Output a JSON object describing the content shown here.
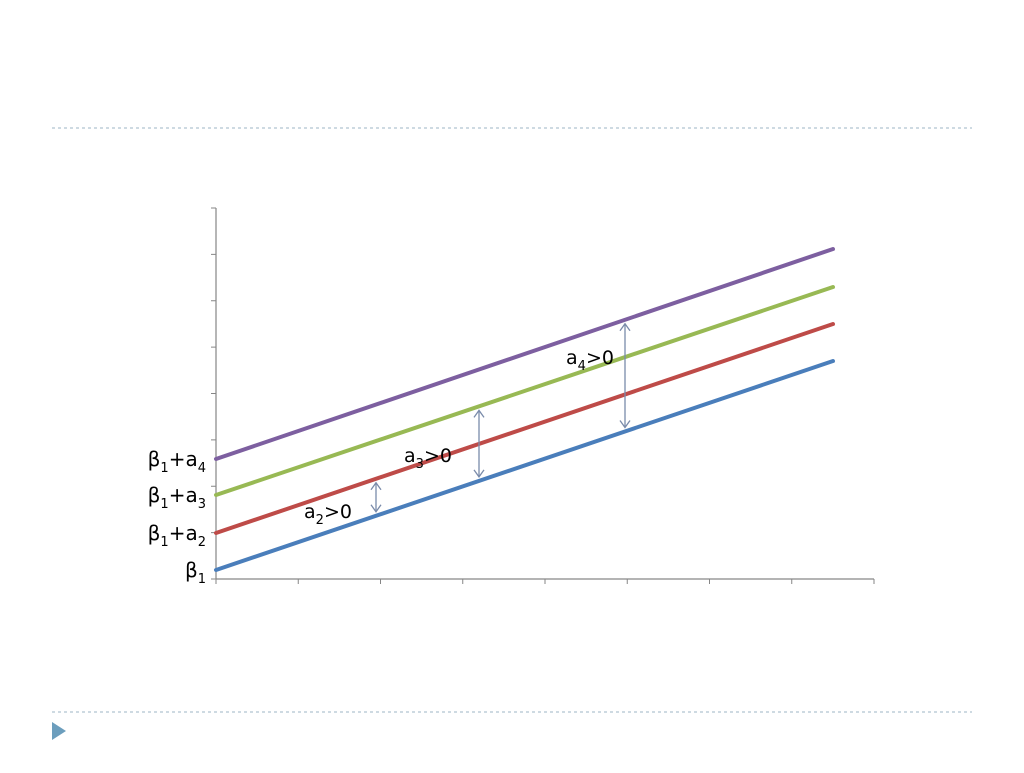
{
  "colors": {
    "series": [
      "#4A7EBB",
      "#BE4B48",
      "#98B954",
      "#7D5FA0"
    ],
    "axis": "#868686",
    "arrow": "#7A8BAA",
    "rule": "#9EB6C6",
    "bullet": "#6C9EBD"
  },
  "chart_data": {
    "type": "line",
    "title": "",
    "xlabel": "",
    "ylabel": "",
    "x_tick_count": 8,
    "y_tick_count": 8,
    "grid": false,
    "legend": "none",
    "series": [
      {
        "intercept_label": {
          "base": "β",
          "base_sub": "1",
          "plus": "",
          "term": "",
          "term_sub": ""
        }
      },
      {
        "intercept_label": {
          "base": "β",
          "base_sub": "1",
          "plus": "+",
          "term": "a",
          "term_sub": "2"
        }
      },
      {
        "intercept_label": {
          "base": "β",
          "base_sub": "1",
          "plus": "+",
          "term": "a",
          "term_sub": "3"
        }
      },
      {
        "intercept_label": {
          "base": "β",
          "base_sub": "1",
          "plus": "+",
          "term": "a",
          "term_sub": "4"
        }
      }
    ],
    "annotations": [
      {
        "term": "a",
        "sub": "2",
        "rest": ">0",
        "from_series": 0,
        "to_series": 1
      },
      {
        "term": "a",
        "sub": "3",
        "rest": ">0",
        "from_series": 0,
        "to_series": 2
      },
      {
        "term": "a",
        "sub": "4",
        "rest": ">0",
        "from_series": 0,
        "to_series": 3
      }
    ]
  }
}
